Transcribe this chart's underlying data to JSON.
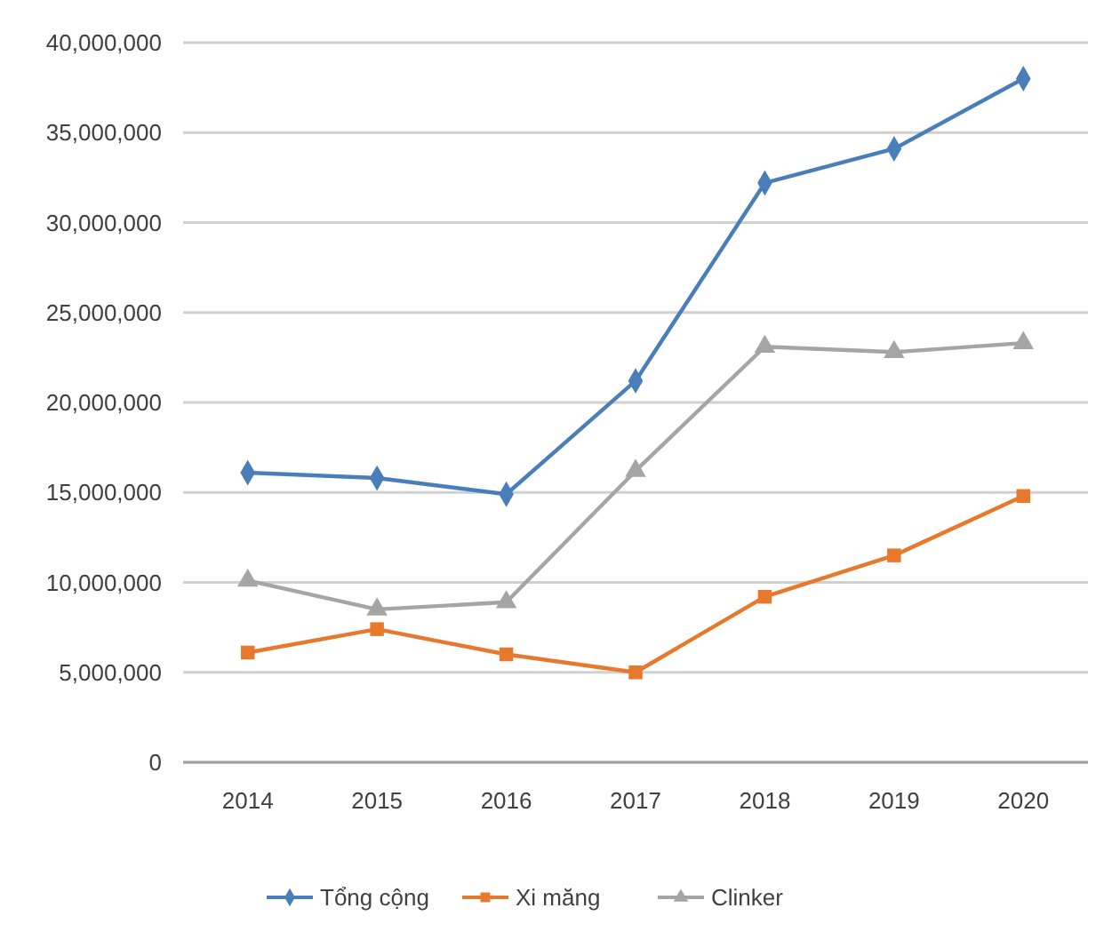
{
  "chart_data": {
    "type": "line",
    "categories": [
      "2014",
      "2015",
      "2016",
      "2017",
      "2018",
      "2019",
      "2020"
    ],
    "series": [
      {
        "name": "Tổng cộng",
        "color": "#4a7ebb",
        "marker": "diamond",
        "values": [
          16100000,
          15800000,
          14900000,
          21200000,
          32200000,
          34100000,
          38000000
        ]
      },
      {
        "name": "Xi măng",
        "color": "#e8792c",
        "marker": "square",
        "values": [
          6100000,
          7400000,
          6000000,
          5000000,
          9200000,
          11500000,
          14800000
        ]
      },
      {
        "name": "Clinker",
        "color": "#a5a5a5",
        "marker": "triangle",
        "values": [
          10100000,
          8500000,
          8900000,
          16200000,
          23100000,
          22800000,
          23300000
        ]
      }
    ],
    "ylim": [
      0,
      40000000
    ],
    "yticks": [
      {
        "value": 0,
        "label": "0"
      },
      {
        "value": 5000000,
        "label": "5,000,000"
      },
      {
        "value": 10000000,
        "label": "10,000,000"
      },
      {
        "value": 15000000,
        "label": "15,000,000"
      },
      {
        "value": 20000000,
        "label": "20,000,000"
      },
      {
        "value": 25000000,
        "label": "25,000,000"
      },
      {
        "value": 30000000,
        "label": "30,000,000"
      },
      {
        "value": 35000000,
        "label": "35,000,000"
      },
      {
        "value": 40000000,
        "label": "40,000,000"
      }
    ],
    "grid": "y",
    "legend": "bottom"
  }
}
